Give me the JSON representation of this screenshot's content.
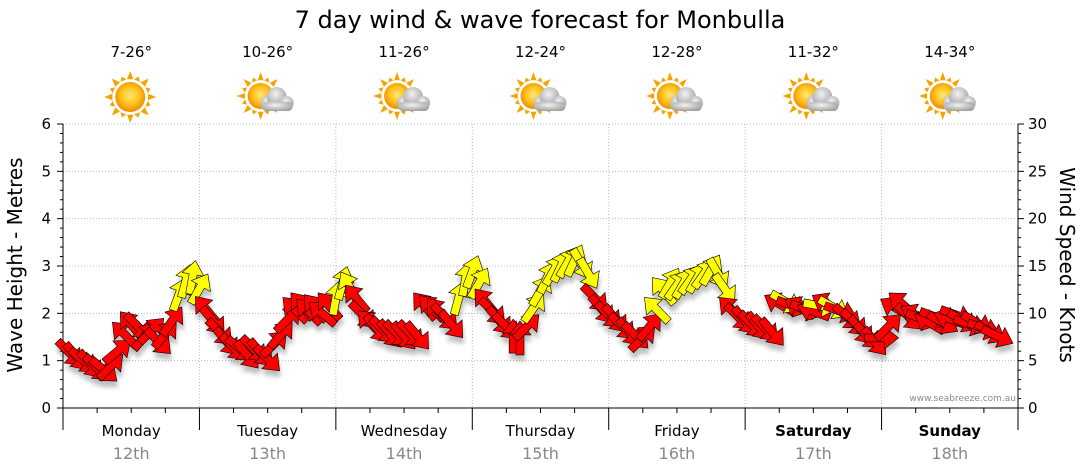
{
  "title": "7 day wind & wave forecast for Monbulla",
  "credit": "www.seabreeze.com.au",
  "colors": {
    "wind_light": "#ffff00",
    "wind_strong": "#ff0000",
    "outline": "#000000",
    "grid": "#bbbbbb",
    "date_text": "#888888"
  },
  "days": [
    {
      "name": "Monday",
      "date": "12th",
      "temp": "7-26°",
      "icon": "sun-icon",
      "bold": false
    },
    {
      "name": "Tuesday",
      "date": "13th",
      "temp": "10-26°",
      "icon": "sun-cloud-icon",
      "bold": false
    },
    {
      "name": "Wednesday",
      "date": "14th",
      "temp": "11-26°",
      "icon": "sun-cloud-icon",
      "bold": false
    },
    {
      "name": "Thursday",
      "date": "15th",
      "temp": "12-24°",
      "icon": "sun-cloud-icon",
      "bold": false
    },
    {
      "name": "Friday",
      "date": "16th",
      "temp": "12-28°",
      "icon": "sun-cloud-icon",
      "bold": false
    },
    {
      "name": "Saturday",
      "date": "17th",
      "temp": "11-32°",
      "icon": "sun-cloud-icon",
      "bold": true
    },
    {
      "name": "Sunday",
      "date": "18th",
      "temp": "14-34°",
      "icon": "sun-cloud-icon",
      "bold": true
    }
  ],
  "chart_data": {
    "type": "scatter",
    "title": "7 day wind & wave forecast for Monbulla",
    "ylabel_left": "Wave Height - Metres",
    "ylabel_right": "Wind Speed - Knots",
    "y_left_range": [
      0,
      6
    ],
    "y_right_range": [
      0,
      30
    ],
    "y_left_ticks": [
      "0",
      "1",
      "2",
      "3",
      "4",
      "5",
      "6"
    ],
    "y_right_ticks": [
      "0",
      "5",
      "10",
      "15",
      "20",
      "25",
      "30"
    ],
    "grid": true,
    "x_unit": "day",
    "x_range": [
      0,
      7
    ],
    "series": [
      {
        "marker": "wind-arrow",
        "note": "x = fractional day from Monday 00:00; y = wind speed in knots; dir = heading of arrow in degrees (0 = pointing up, clockwise)",
        "points": [
          {
            "x": 0.05,
            "y": 5.8,
            "dir": 135,
            "color": "red"
          },
          {
            "x": 0.1,
            "y": 5.4,
            "dir": 140,
            "color": "red"
          },
          {
            "x": 0.15,
            "y": 5.0,
            "dir": 130,
            "color": "red"
          },
          {
            "x": 0.2,
            "y": 4.6,
            "dir": 140,
            "color": "red"
          },
          {
            "x": 0.25,
            "y": 4.2,
            "dir": 135,
            "color": "red"
          },
          {
            "x": 0.3,
            "y": 4.0,
            "dir": 130,
            "color": "red"
          },
          {
            "x": 0.35,
            "y": 4.4,
            "dir": 45,
            "color": "red"
          },
          {
            "x": 0.4,
            "y": 6.0,
            "dir": 50,
            "color": "red"
          },
          {
            "x": 0.45,
            "y": 7.8,
            "dir": 315,
            "color": "red"
          },
          {
            "x": 0.5,
            "y": 8.8,
            "dir": 320,
            "color": "red"
          },
          {
            "x": 0.55,
            "y": 8.6,
            "dir": 135,
            "color": "red"
          },
          {
            "x": 0.6,
            "y": 7.6,
            "dir": 40,
            "color": "red"
          },
          {
            "x": 0.65,
            "y": 8.2,
            "dir": 45,
            "color": "red"
          },
          {
            "x": 0.7,
            "y": 7.0,
            "dir": 135,
            "color": "red"
          },
          {
            "x": 0.75,
            "y": 7.8,
            "dir": 40,
            "color": "red"
          },
          {
            "x": 0.8,
            "y": 9.2,
            "dir": 35,
            "color": "red"
          },
          {
            "x": 0.85,
            "y": 12.0,
            "dir": 20,
            "color": "yellow"
          },
          {
            "x": 0.9,
            "y": 13.4,
            "dir": 15,
            "color": "yellow"
          },
          {
            "x": 0.95,
            "y": 13.8,
            "dir": 10,
            "color": "yellow"
          },
          {
            "x": 1.0,
            "y": 12.6,
            "dir": 30,
            "color": "yellow"
          },
          {
            "x": 1.05,
            "y": 10.4,
            "dir": 320,
            "color": "red"
          },
          {
            "x": 1.1,
            "y": 9.2,
            "dir": 140,
            "color": "red"
          },
          {
            "x": 1.15,
            "y": 8.0,
            "dir": 135,
            "color": "red"
          },
          {
            "x": 1.2,
            "y": 7.0,
            "dir": 140,
            "color": "red"
          },
          {
            "x": 1.25,
            "y": 6.4,
            "dir": 135,
            "color": "red"
          },
          {
            "x": 1.3,
            "y": 6.2,
            "dir": 130,
            "color": "red"
          },
          {
            "x": 1.35,
            "y": 5.6,
            "dir": 140,
            "color": "red"
          },
          {
            "x": 1.4,
            "y": 6.2,
            "dir": 135,
            "color": "red"
          },
          {
            "x": 1.45,
            "y": 5.8,
            "dir": 140,
            "color": "red"
          },
          {
            "x": 1.5,
            "y": 5.2,
            "dir": 135,
            "color": "red"
          },
          {
            "x": 1.55,
            "y": 6.8,
            "dir": 45,
            "color": "red"
          },
          {
            "x": 1.6,
            "y": 7.8,
            "dir": 40,
            "color": "red"
          },
          {
            "x": 1.65,
            "y": 9.4,
            "dir": 45,
            "color": "red"
          },
          {
            "x": 1.7,
            "y": 10.4,
            "dir": 315,
            "color": "red"
          },
          {
            "x": 1.75,
            "y": 10.8,
            "dir": 320,
            "color": "red"
          },
          {
            "x": 1.8,
            "y": 10.2,
            "dir": 315,
            "color": "red"
          },
          {
            "x": 1.85,
            "y": 10.6,
            "dir": 320,
            "color": "red"
          },
          {
            "x": 1.9,
            "y": 10.0,
            "dir": 310,
            "color": "red"
          },
          {
            "x": 1.95,
            "y": 10.8,
            "dir": 320,
            "color": "red"
          },
          {
            "x": 2.0,
            "y": 11.6,
            "dir": 10,
            "color": "yellow"
          },
          {
            "x": 2.05,
            "y": 13.2,
            "dir": 15,
            "color": "yellow"
          },
          {
            "x": 2.1,
            "y": 12.8,
            "dir": 330,
            "color": "yellow"
          },
          {
            "x": 2.15,
            "y": 11.6,
            "dir": 320,
            "color": "red"
          },
          {
            "x": 2.2,
            "y": 9.8,
            "dir": 135,
            "color": "red"
          },
          {
            "x": 2.25,
            "y": 9.0,
            "dir": 315,
            "color": "red"
          },
          {
            "x": 2.3,
            "y": 8.4,
            "dir": 140,
            "color": "red"
          },
          {
            "x": 2.35,
            "y": 8.2,
            "dir": 135,
            "color": "red"
          },
          {
            "x": 2.4,
            "y": 7.8,
            "dir": 140,
            "color": "red"
          },
          {
            "x": 2.45,
            "y": 7.8,
            "dir": 135,
            "color": "red"
          },
          {
            "x": 2.5,
            "y": 7.6,
            "dir": 140,
            "color": "red"
          },
          {
            "x": 2.55,
            "y": 7.8,
            "dir": 135,
            "color": "red"
          },
          {
            "x": 2.6,
            "y": 7.6,
            "dir": 140,
            "color": "red"
          },
          {
            "x": 2.65,
            "y": 10.8,
            "dir": 320,
            "color": "red"
          },
          {
            "x": 2.7,
            "y": 10.6,
            "dir": 315,
            "color": "red"
          },
          {
            "x": 2.75,
            "y": 10.2,
            "dir": 320,
            "color": "red"
          },
          {
            "x": 2.8,
            "y": 9.6,
            "dir": 135,
            "color": "red"
          },
          {
            "x": 2.85,
            "y": 8.8,
            "dir": 140,
            "color": "red"
          },
          {
            "x": 2.9,
            "y": 11.6,
            "dir": 15,
            "color": "yellow"
          },
          {
            "x": 2.95,
            "y": 13.6,
            "dir": 10,
            "color": "yellow"
          },
          {
            "x": 3.0,
            "y": 14.4,
            "dir": 20,
            "color": "yellow"
          },
          {
            "x": 3.05,
            "y": 13.2,
            "dir": 30,
            "color": "yellow"
          },
          {
            "x": 3.1,
            "y": 11.2,
            "dir": 320,
            "color": "red"
          },
          {
            "x": 3.15,
            "y": 10.2,
            "dir": 135,
            "color": "red"
          },
          {
            "x": 3.2,
            "y": 9.2,
            "dir": 140,
            "color": "red"
          },
          {
            "x": 3.25,
            "y": 8.6,
            "dir": 135,
            "color": "red"
          },
          {
            "x": 3.3,
            "y": 7.6,
            "dir": 0,
            "color": "red"
          },
          {
            "x": 3.35,
            "y": 7.4,
            "dir": 0,
            "color": "red"
          },
          {
            "x": 3.4,
            "y": 8.6,
            "dir": 45,
            "color": "red"
          },
          {
            "x": 3.45,
            "y": 10.6,
            "dir": 35,
            "color": "yellow"
          },
          {
            "x": 3.5,
            "y": 12.4,
            "dir": 30,
            "color": "yellow"
          },
          {
            "x": 3.55,
            "y": 13.8,
            "dir": 25,
            "color": "yellow"
          },
          {
            "x": 3.6,
            "y": 14.6,
            "dir": 30,
            "color": "yellow"
          },
          {
            "x": 3.65,
            "y": 15.0,
            "dir": 25,
            "color": "yellow"
          },
          {
            "x": 3.7,
            "y": 15.4,
            "dir": 30,
            "color": "yellow"
          },
          {
            "x": 3.75,
            "y": 15.6,
            "dir": 25,
            "color": "yellow"
          },
          {
            "x": 3.8,
            "y": 15.2,
            "dir": 150,
            "color": "yellow"
          },
          {
            "x": 3.85,
            "y": 14.2,
            "dir": 150,
            "color": "yellow"
          },
          {
            "x": 3.9,
            "y": 11.6,
            "dir": 135,
            "color": "red"
          },
          {
            "x": 3.95,
            "y": 10.4,
            "dir": 140,
            "color": "red"
          },
          {
            "x": 4.0,
            "y": 9.8,
            "dir": 135,
            "color": "red"
          },
          {
            "x": 4.05,
            "y": 9.4,
            "dir": 140,
            "color": "red"
          },
          {
            "x": 4.1,
            "y": 8.6,
            "dir": 135,
            "color": "red"
          },
          {
            "x": 4.15,
            "y": 8.0,
            "dir": 140,
            "color": "red"
          },
          {
            "x": 4.2,
            "y": 7.6,
            "dir": 135,
            "color": "red"
          },
          {
            "x": 4.25,
            "y": 7.4,
            "dir": 45,
            "color": "red"
          },
          {
            "x": 4.3,
            "y": 8.6,
            "dir": 40,
            "color": "red"
          },
          {
            "x": 4.35,
            "y": 10.4,
            "dir": 315,
            "color": "yellow"
          },
          {
            "x": 4.4,
            "y": 12.4,
            "dir": 320,
            "color": "yellow"
          },
          {
            "x": 4.45,
            "y": 13.2,
            "dir": 30,
            "color": "yellow"
          },
          {
            "x": 4.5,
            "y": 13.0,
            "dir": 35,
            "color": "yellow"
          },
          {
            "x": 4.55,
            "y": 13.2,
            "dir": 30,
            "color": "yellow"
          },
          {
            "x": 4.6,
            "y": 13.6,
            "dir": 35,
            "color": "yellow"
          },
          {
            "x": 4.65,
            "y": 13.8,
            "dir": 30,
            "color": "yellow"
          },
          {
            "x": 4.7,
            "y": 14.2,
            "dir": 35,
            "color": "yellow"
          },
          {
            "x": 4.75,
            "y": 14.6,
            "dir": 30,
            "color": "yellow"
          },
          {
            "x": 4.8,
            "y": 14.2,
            "dir": 150,
            "color": "yellow"
          },
          {
            "x": 4.85,
            "y": 12.6,
            "dir": 145,
            "color": "yellow"
          },
          {
            "x": 4.9,
            "y": 10.4,
            "dir": 315,
            "color": "red"
          },
          {
            "x": 4.95,
            "y": 9.6,
            "dir": 135,
            "color": "red"
          },
          {
            "x": 5.0,
            "y": 9.2,
            "dir": 140,
            "color": "red"
          },
          {
            "x": 5.05,
            "y": 8.8,
            "dir": 135,
            "color": "red"
          },
          {
            "x": 5.1,
            "y": 8.6,
            "dir": 140,
            "color": "red"
          },
          {
            "x": 5.15,
            "y": 8.4,
            "dir": 135,
            "color": "red"
          },
          {
            "x": 5.2,
            "y": 8.0,
            "dir": 140,
            "color": "red"
          },
          {
            "x": 5.25,
            "y": 11.0,
            "dir": 300,
            "color": "red"
          },
          {
            "x": 5.3,
            "y": 11.2,
            "dir": 120,
            "color": "yellow"
          },
          {
            "x": 5.35,
            "y": 10.8,
            "dir": 110,
            "color": "red"
          },
          {
            "x": 5.4,
            "y": 10.6,
            "dir": 300,
            "color": "red"
          },
          {
            "x": 5.45,
            "y": 10.4,
            "dir": 110,
            "color": "red"
          },
          {
            "x": 5.5,
            "y": 10.2,
            "dir": 290,
            "color": "red"
          },
          {
            "x": 5.55,
            "y": 10.8,
            "dir": 100,
            "color": "yellow"
          },
          {
            "x": 5.6,
            "y": 11.0,
            "dir": 300,
            "color": "red"
          },
          {
            "x": 5.65,
            "y": 10.6,
            "dir": 120,
            "color": "yellow"
          },
          {
            "x": 5.7,
            "y": 10.2,
            "dir": 110,
            "color": "red"
          },
          {
            "x": 5.75,
            "y": 9.6,
            "dir": 130,
            "color": "red"
          },
          {
            "x": 5.8,
            "y": 9.0,
            "dir": 135,
            "color": "red"
          },
          {
            "x": 5.85,
            "y": 8.2,
            "dir": 140,
            "color": "red"
          },
          {
            "x": 5.9,
            "y": 7.6,
            "dir": 135,
            "color": "red"
          },
          {
            "x": 5.95,
            "y": 7.0,
            "dir": 140,
            "color": "red"
          },
          {
            "x": 6.0,
            "y": 7.4,
            "dir": 90,
            "color": "red"
          },
          {
            "x": 6.05,
            "y": 8.6,
            "dir": 45,
            "color": "red"
          },
          {
            "x": 6.1,
            "y": 10.6,
            "dir": 300,
            "color": "red"
          },
          {
            "x": 6.15,
            "y": 11.0,
            "dir": 310,
            "color": "red"
          },
          {
            "x": 6.2,
            "y": 9.6,
            "dir": 135,
            "color": "red"
          },
          {
            "x": 6.25,
            "y": 9.8,
            "dir": 300,
            "color": "red"
          },
          {
            "x": 6.3,
            "y": 9.4,
            "dir": 110,
            "color": "red"
          },
          {
            "x": 6.35,
            "y": 9.0,
            "dir": 300,
            "color": "red"
          },
          {
            "x": 6.4,
            "y": 9.6,
            "dir": 110,
            "color": "red"
          },
          {
            "x": 6.45,
            "y": 9.0,
            "dir": 120,
            "color": "red"
          },
          {
            "x": 6.5,
            "y": 9.4,
            "dir": 290,
            "color": "red"
          },
          {
            "x": 6.55,
            "y": 9.8,
            "dir": 110,
            "color": "red"
          },
          {
            "x": 6.6,
            "y": 9.2,
            "dir": 120,
            "color": "red"
          },
          {
            "x": 6.65,
            "y": 8.8,
            "dir": 110,
            "color": "red"
          },
          {
            "x": 6.7,
            "y": 9.0,
            "dir": 120,
            "color": "red"
          },
          {
            "x": 6.75,
            "y": 8.4,
            "dir": 110,
            "color": "red"
          },
          {
            "x": 6.8,
            "y": 8.0,
            "dir": 120,
            "color": "red"
          },
          {
            "x": 6.85,
            "y": 7.6,
            "dir": 115,
            "color": "red"
          }
        ]
      }
    ]
  }
}
